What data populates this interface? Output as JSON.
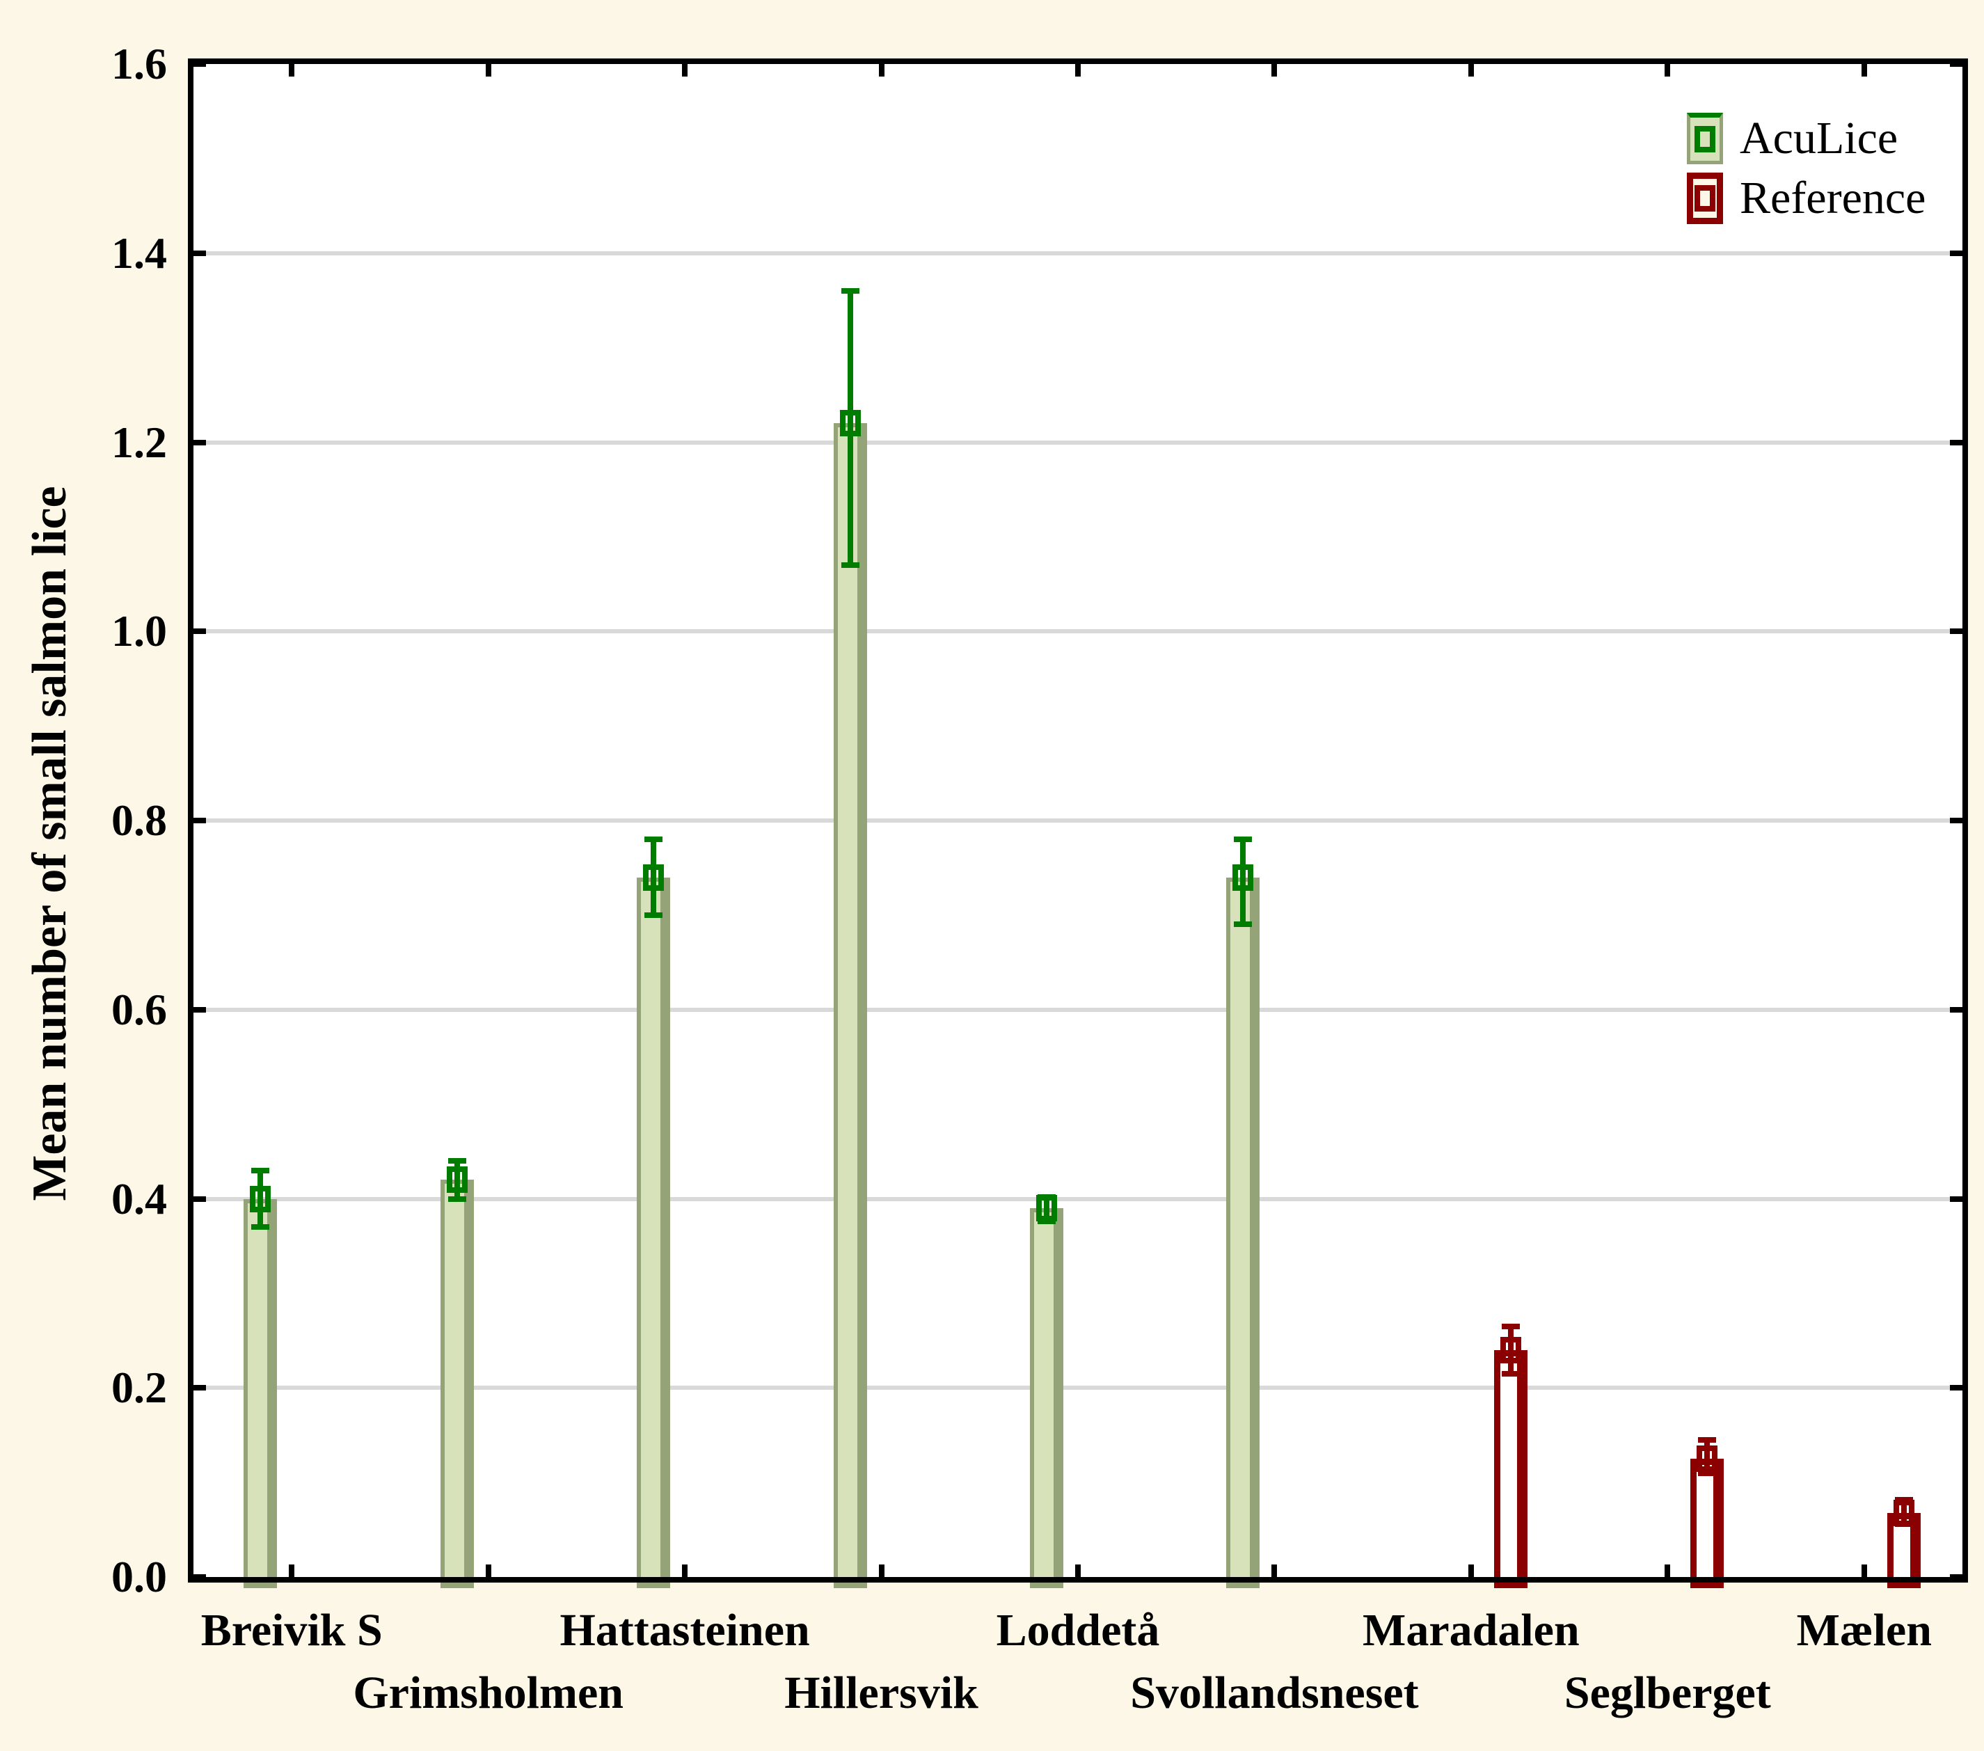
{
  "palette": {
    "background": "#FCF7E6",
    "plot_background": "#FFFFFF",
    "frame": "#000000",
    "gridline": "#D9D9D9",
    "aculice_bar_fill": "#D7E2BA",
    "aculice_bar_edge": "#94A478",
    "aculice_error": "#007C00",
    "reference_bar_fill": "#FFFFFF",
    "reference_bar_edge": "#8B0000",
    "reference_error": "#8B0000"
  },
  "chart_data": {
    "type": "bar",
    "title": "",
    "xlabel": "",
    "ylabel": "Mean number of small salmon lice",
    "ylim": [
      0.0,
      1.6
    ],
    "y_ticks": [
      0.0,
      0.2,
      0.4,
      0.6,
      0.8,
      1.0,
      1.2,
      1.4,
      1.6
    ],
    "y_tick_labels": [
      "0.0",
      "0.2",
      "0.4",
      "0.6",
      "0.8",
      "1.0",
      "1.2",
      "1.4",
      "1.6"
    ],
    "grid": "horizontal-major-only",
    "error_bars": true,
    "marker": "open-square-at-mean",
    "legend": {
      "position": "top-right-inside",
      "entries": [
        "AcuLice",
        "Reference"
      ]
    },
    "categories": [
      "Breivik S",
      "Grimsholmen",
      "Hattasteinen",
      "Hillersvik",
      "Loddetå",
      "Svollandsneset",
      "Maradalen",
      "Seglberget",
      "Mælen"
    ],
    "x_label_rows": [
      1,
      2,
      1,
      2,
      1,
      2,
      1,
      2,
      1
    ],
    "series": [
      {
        "name": "AcuLice",
        "means": [
          0.4,
          0.42,
          0.74,
          1.22,
          0.39,
          0.74,
          null,
          null,
          null
        ],
        "ci_low": [
          0.37,
          0.4,
          0.7,
          1.07,
          0.376,
          0.69,
          null,
          null,
          null
        ],
        "ci_high": [
          0.43,
          0.44,
          0.78,
          1.36,
          0.402,
          0.78,
          null,
          null,
          null
        ]
      },
      {
        "name": "Reference",
        "means": [
          null,
          null,
          null,
          null,
          null,
          null,
          0.24,
          0.125,
          0.068
        ],
        "ci_low": [
          null,
          null,
          null,
          null,
          null,
          null,
          0.215,
          0.11,
          0.056
        ],
        "ci_high": [
          null,
          null,
          null,
          null,
          null,
          null,
          0.265,
          0.145,
          0.082
        ]
      }
    ]
  }
}
